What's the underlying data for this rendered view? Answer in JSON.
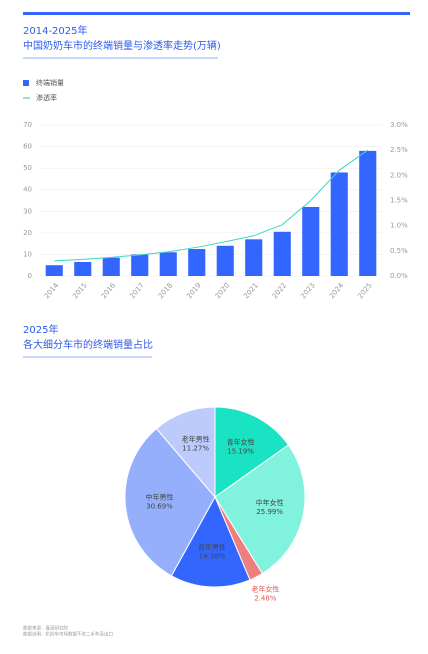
{
  "chart_data": [
    {
      "type": "bar",
      "subtitle": "2014-2025年",
      "title": "中国奶奶车市的终端销量与渗透率走势(万辆)",
      "categories": [
        "2014",
        "2015",
        "2016",
        "2017",
        "2018",
        "2019",
        "2020",
        "2021",
        "2022",
        "2023",
        "2024",
        "2025"
      ],
      "series": [
        {
          "name": "终端销量",
          "color": "#3366ff",
          "values": [
            5,
            6.5,
            8.5,
            10,
            11,
            12.5,
            14,
            17,
            20.5,
            32,
            48,
            58
          ]
        },
        {
          "name": "渗透率",
          "type": "line",
          "axis": "y2",
          "color": "#3cd6c4",
          "values": [
            0.3,
            0.33,
            0.37,
            0.42,
            0.48,
            0.57,
            0.68,
            0.8,
            1.02,
            1.5,
            2.1,
            2.5
          ]
        }
      ],
      "ylim": [
        0,
        70
      ],
      "yticks": [
        0,
        10,
        20,
        30,
        40,
        50,
        60,
        70
      ],
      "y2lim": [
        0,
        3
      ],
      "y2ticks": [
        {
          "value": 0,
          "label": "0.0%"
        },
        {
          "value": 0.5,
          "label": "0.5%"
        },
        {
          "value": 1,
          "label": "1.0%"
        },
        {
          "value": 1.5,
          "label": "1.5%"
        },
        {
          "value": 2,
          "label": "2.0%"
        },
        {
          "value": 2.5,
          "label": "2.5%"
        },
        {
          "value": 3,
          "label": "3.0%"
        }
      ],
      "grid": true,
      "legend": "top-left"
    },
    {
      "type": "pie",
      "subtitle": "2025年",
      "title": "各大细分车市的终端销量占比",
      "categories": [
        "青年女性",
        "中年女性",
        "老年女性",
        "青年男性",
        "中年男性",
        "老年男性"
      ],
      "values": [
        15.19,
        25.99,
        2.48,
        14.38,
        30.69,
        11.27
      ],
      "value_labels": [
        "15.19%",
        "25.99%",
        "2.48%",
        "14.38%",
        "30.69%",
        "11.27%"
      ],
      "colors": [
        "#19e3c3",
        "#80f2de",
        "#ee7f7f",
        "#3366ff",
        "#95affc",
        "#bccbfb"
      ]
    }
  ],
  "footnotes": [
    "数据来源：嘉源研究院",
    "数据说明：奶奶车市场数据不含二手车及出口"
  ]
}
